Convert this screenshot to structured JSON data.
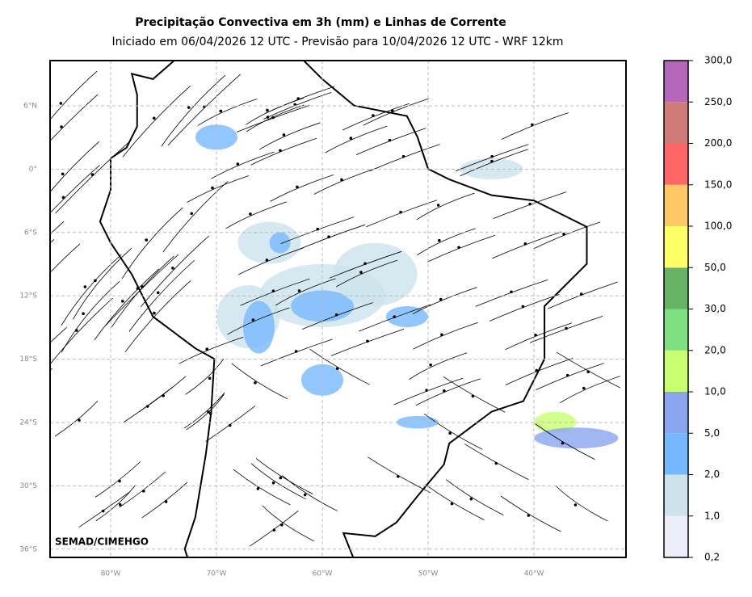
{
  "header": {
    "title": "Precipitação Convectiva em 3h (mm) e Linhas de Corrente",
    "subtitle": "Iniciado em 06/04/2026 12 UTC - Previsão para 10/04/2026 12 UTC - WRF 12km"
  },
  "map": {
    "lat_labels": [
      "6°N",
      "0°",
      "6°S",
      "12°S",
      "18°S",
      "24°S",
      "30°S",
      "36°S"
    ],
    "lon_labels": [
      "80°W",
      "70°W",
      "60°W",
      "50°W",
      "40°W"
    ],
    "watermark": "SEMAD/CIMEHGO"
  },
  "colorbar": {
    "labels": [
      "0,2",
      "1,0",
      "2,0",
      "5,0",
      "10,0",
      "20,0",
      "30,0",
      "50,0",
      "100,0",
      "150,0",
      "200,0",
      "250,0",
      "300,0"
    ],
    "colors": [
      "#eeeefa",
      "#cde3ec",
      "#75b8ff",
      "#8aa5ee",
      "#c8ff70",
      "#80e080",
      "#66b366",
      "#ffff66",
      "#ffc966",
      "#ff6666",
      "#d07a78",
      "#b466b8"
    ]
  }
}
